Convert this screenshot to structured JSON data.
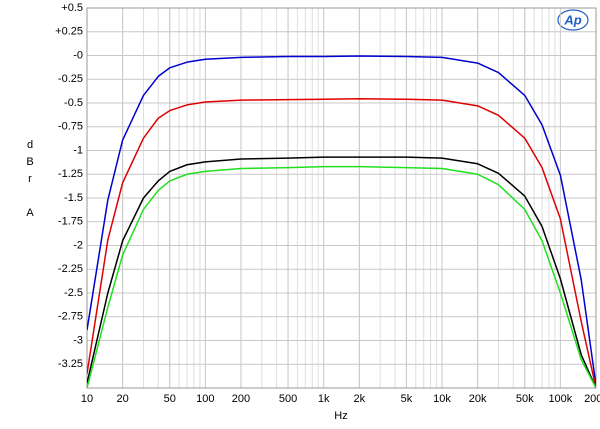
{
  "chart_data": {
    "type": "line",
    "ylabel": "dBr A",
    "xlabel": "Hz",
    "logo": "Ap",
    "x": [
      10,
      15,
      20,
      30,
      40,
      50,
      70,
      100,
      200,
      500,
      1000,
      2000,
      5000,
      10000,
      20000,
      30000,
      50000,
      70000,
      100000,
      150000,
      200000
    ],
    "xscale": "log",
    "xlim": [
      10,
      200000
    ],
    "xticks": [
      10,
      20,
      50,
      100,
      200,
      500,
      {
        "value": 1000,
        "label": "1k"
      },
      {
        "value": 2000,
        "label": "2k"
      },
      {
        "value": 5000,
        "label": "5k"
      },
      {
        "value": 10000,
        "label": "10k"
      },
      {
        "value": 20000,
        "label": "20k"
      },
      {
        "value": 50000,
        "label": "50k"
      },
      {
        "value": 100000,
        "label": "100k"
      },
      {
        "value": 200000,
        "label": "200k"
      }
    ],
    "ylim": [
      -3.5,
      0.5
    ],
    "yticks": [
      {
        "value": 0.5,
        "label": "+0.5"
      },
      {
        "value": 0.25,
        "label": "+0.25"
      },
      {
        "value": 0,
        "label": "-0"
      },
      -0.25,
      -0.5,
      -0.75,
      -1,
      -1.25,
      -1.5,
      -1.75,
      -2,
      -2.25,
      -2.5,
      -2.75,
      -3,
      -3.25
    ],
    "grid": true,
    "series": [
      {
        "color": "#0000d0",
        "values": [
          -2.89,
          -1.52,
          -0.89,
          -0.42,
          -0.22,
          -0.13,
          -0.07,
          -0.04,
          -0.02,
          -0.01,
          -0.01,
          -0.005,
          -0.01,
          -0.02,
          -0.08,
          -0.18,
          -0.42,
          -0.73,
          -1.26,
          -2.36,
          -3.47
        ]
      },
      {
        "color": "#e00000",
        "values": [
          -3.35,
          -1.94,
          -1.34,
          -0.87,
          -0.66,
          -0.58,
          -0.52,
          -0.49,
          -0.47,
          -0.465,
          -0.46,
          -0.455,
          -0.46,
          -0.47,
          -0.53,
          -0.63,
          -0.87,
          -1.18,
          -1.72,
          -2.8,
          -3.5
        ]
      },
      {
        "color": "#000000",
        "values": [
          -3.45,
          -2.5,
          -1.95,
          -1.5,
          -1.32,
          -1.22,
          -1.15,
          -1.12,
          -1.09,
          -1.08,
          -1.07,
          -1.07,
          -1.07,
          -1.08,
          -1.14,
          -1.24,
          -1.48,
          -1.8,
          -2.35,
          -3.15,
          -3.5
        ]
      },
      {
        "color": "#20e020",
        "values": [
          -3.5,
          -2.65,
          -2.1,
          -1.62,
          -1.42,
          -1.32,
          -1.25,
          -1.22,
          -1.19,
          -1.18,
          -1.17,
          -1.17,
          -1.18,
          -1.19,
          -1.25,
          -1.36,
          -1.62,
          -1.95,
          -2.5,
          -3.2,
          -3.5
        ]
      }
    ]
  }
}
